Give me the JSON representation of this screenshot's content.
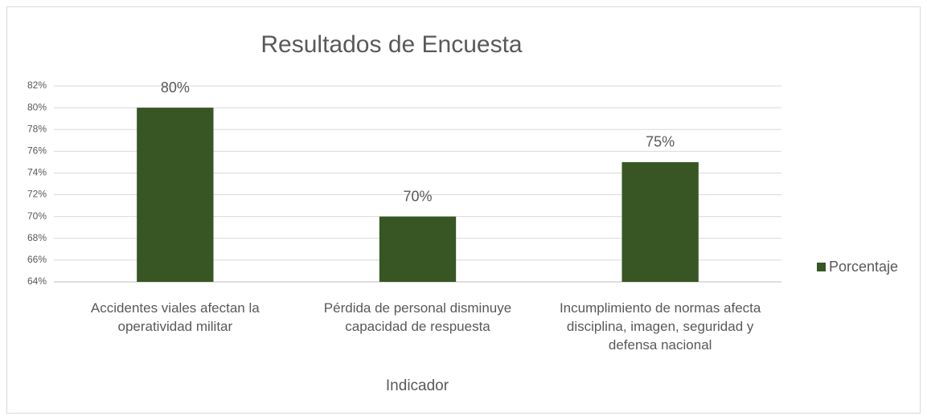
{
  "chart_data": {
    "type": "bar",
    "title": "Resultados de Encuesta",
    "x_label": "Indicador",
    "categories": [
      "Accidentes viales afectan la operatividad militar",
      "Pérdida de personal disminuye capacidad de respuesta",
      "Incumplimiento de normas afecta disciplina, imagen, seguridad y defensa nacional"
    ],
    "series": [
      {
        "name": "Porcentaje",
        "color": "#375623",
        "values": [
          80,
          70,
          75
        ],
        "value_labels": [
          "80%",
          "70%",
          "75%"
        ]
      }
    ],
    "ylim": [
      64,
      82
    ],
    "yticks": [
      {
        "value": 64,
        "label": "64%"
      },
      {
        "value": 66,
        "label": "66%"
      },
      {
        "value": 68,
        "label": "68%"
      },
      {
        "value": 70,
        "label": "70%"
      },
      {
        "value": 72,
        "label": "72%"
      },
      {
        "value": 74,
        "label": "74%"
      },
      {
        "value": 76,
        "label": "76%"
      },
      {
        "value": 78,
        "label": "78%"
      },
      {
        "value": 80,
        "label": "80%"
      },
      {
        "value": 82,
        "label": "82%"
      }
    ],
    "grid": true,
    "legend": "right"
  }
}
